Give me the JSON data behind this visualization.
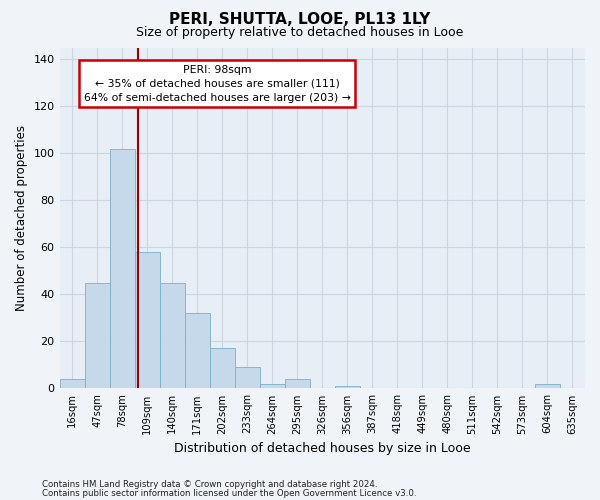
{
  "title": "PERI, SHUTTA, LOOE, PL13 1LY",
  "subtitle": "Size of property relative to detached houses in Looe",
  "xlabel": "Distribution of detached houses by size in Looe",
  "ylabel": "Number of detached properties",
  "footnote1": "Contains HM Land Registry data © Crown copyright and database right 2024.",
  "footnote2": "Contains public sector information licensed under the Open Government Licence v3.0.",
  "bar_labels": [
    "16sqm",
    "47sqm",
    "78sqm",
    "109sqm",
    "140sqm",
    "171sqm",
    "202sqm",
    "233sqm",
    "264sqm",
    "295sqm",
    "326sqm",
    "356sqm",
    "387sqm",
    "418sqm",
    "449sqm",
    "480sqm",
    "511sqm",
    "542sqm",
    "573sqm",
    "604sqm",
    "635sqm"
  ],
  "bar_heights": [
    4,
    45,
    102,
    58,
    45,
    32,
    17,
    9,
    2,
    4,
    0,
    1,
    0,
    0,
    0,
    0,
    0,
    0,
    0,
    2,
    0
  ],
  "bar_color": "#c6d9ea",
  "bar_edge_color": "#7aafc8",
  "grid_color": "#ccd6e0",
  "bg_color": "#e8eef5",
  "peri_label": "PERI: 98sqm",
  "annotation_line1": "← 35% of detached houses are smaller (111)",
  "annotation_line2": "64% of semi-detached houses are larger (203) →",
  "annotation_box_color": "#ffffff",
  "annotation_box_edge": "#cc0000",
  "peri_line_color": "#990000",
  "ylim": [
    0,
    145
  ],
  "yticks": [
    0,
    20,
    40,
    60,
    80,
    100,
    120,
    140
  ],
  "title_fontsize": 11,
  "subtitle_fontsize": 9
}
